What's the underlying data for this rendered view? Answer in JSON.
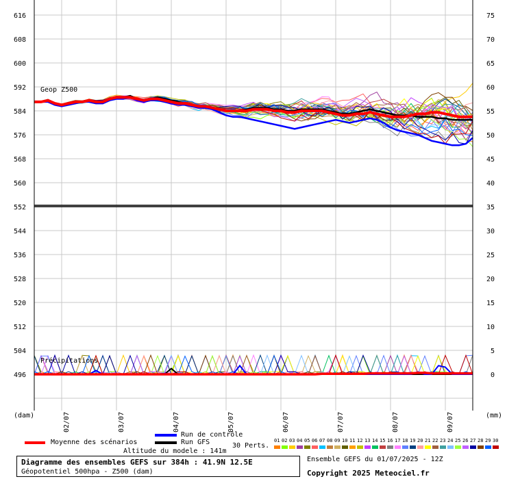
{
  "chart_data": {
    "type": "line",
    "upper_panel": {
      "label": "Geop Z500",
      "left_ticks": [
        "616",
        "608",
        "600",
        "592",
        "584",
        "576",
        "568",
        "560",
        "552"
      ],
      "right_ticks": [
        "75",
        "70",
        "65",
        "60",
        "55",
        "50",
        "45",
        "40",
        "35"
      ],
      "ylim": [
        552,
        620
      ]
    },
    "lower_panel": {
      "label": "Précipitations",
      "left_ticks": [
        "544",
        "536",
        "528",
        "520",
        "512",
        "504",
        "496"
      ],
      "right_ticks": [
        "30",
        "25",
        "20",
        "15",
        "10",
        "5",
        "0"
      ],
      "left_unit": "(dam)",
      "right_unit": "(mm)"
    },
    "x_ticks": [
      "02/07",
      "03/07",
      "04/07",
      "05/07",
      "06/07",
      "07/07",
      "08/07",
      "09/07"
    ],
    "mean_series": {
      "name": "Moyenne des scénarios",
      "color": "#ff0000",
      "z500": [
        587,
        587,
        587.5,
        586.5,
        586,
        586.5,
        587,
        587,
        587.5,
        587,
        587,
        588,
        588.5,
        588.5,
        588.5,
        588,
        587.5,
        588,
        588,
        587.5,
        587,
        586.5,
        586.5,
        586,
        585.5,
        585.5,
        585,
        584.5,
        584,
        584,
        584,
        584,
        584.5,
        584.5,
        584.5,
        584,
        584,
        583.5,
        583.5,
        584,
        584,
        584,
        584,
        583.5,
        583,
        582.5,
        582.5,
        583,
        583,
        583.5,
        583,
        582.5,
        582,
        582,
        582,
        582.5,
        583,
        583,
        583.5,
        583.5,
        583,
        582.5,
        582,
        582,
        582
      ],
      "precip": [
        0,
        0,
        0,
        0,
        0,
        0,
        0,
        0,
        0,
        0,
        0,
        0,
        0,
        0,
        0,
        0,
        0,
        0,
        0,
        0,
        0,
        0,
        0,
        0,
        0,
        0,
        0,
        0,
        0,
        0,
        0,
        0,
        0,
        0,
        0,
        0,
        0,
        0,
        0,
        0,
        0,
        0,
        0.1,
        0.1,
        0.1,
        0.1,
        0.1,
        0.1,
        0.1,
        0.2,
        0.2,
        0.2,
        0.2,
        0.2,
        0.2,
        0.2,
        0.3,
        0.3,
        0.2,
        0.2,
        0.2,
        0.2,
        0.2,
        0.2,
        0.2
      ]
    },
    "control_series": {
      "name": "Run de contrôle",
      "color": "#0000ff",
      "z500": [
        587,
        587,
        587,
        586,
        585.5,
        586,
        586.5,
        587,
        587,
        586.5,
        586.5,
        587.5,
        588,
        588,
        588.5,
        587.5,
        587,
        587.5,
        587.5,
        587,
        586.5,
        586,
        586,
        585.5,
        585,
        585,
        584.5,
        583.5,
        582.5,
        582,
        582,
        581.5,
        581,
        580.5,
        580,
        579.5,
        579,
        578.5,
        578,
        578.5,
        579,
        579.5,
        580,
        580.5,
        581,
        580.5,
        580,
        580.5,
        581,
        581.5,
        581,
        580,
        578.5,
        577.5,
        577,
        576.5,
        576,
        575,
        574,
        573.5,
        573,
        572.5,
        572.5,
        573,
        575
      ],
      "precip": [
        0,
        0,
        0,
        0,
        0,
        0,
        0,
        0,
        0,
        0.8,
        0,
        0,
        0,
        0,
        0,
        0,
        0,
        0,
        0,
        0.2,
        0,
        0,
        0,
        0,
        0,
        0,
        0,
        0,
        0,
        0,
        1.8,
        0,
        0,
        0,
        0,
        0,
        0,
        0,
        0,
        0,
        0,
        0,
        0,
        0,
        0,
        0,
        0,
        0,
        0,
        0,
        0,
        0,
        0,
        0,
        0,
        0,
        0.5,
        0,
        0,
        1.8,
        1.5,
        0,
        0,
        0,
        0
      ]
    },
    "gfs_series": {
      "name": "Run GFS",
      "color": "#000000",
      "z500": [
        587,
        587,
        587.5,
        586.5,
        586,
        586.5,
        587,
        587,
        587.5,
        587,
        587,
        588,
        588.5,
        588.5,
        589,
        588,
        587.5,
        588,
        588.5,
        588,
        587.5,
        587,
        586.5,
        586,
        585.5,
        585.5,
        585,
        584.5,
        584,
        584,
        584,
        584.5,
        585,
        585,
        585,
        584.5,
        584.5,
        584,
        584,
        584.5,
        584.5,
        584.5,
        584.5,
        584,
        583.5,
        583,
        583,
        583.5,
        584,
        584.5,
        584,
        583.5,
        583,
        582.5,
        582.5,
        582.5,
        582,
        582,
        582,
        581.5,
        581.5,
        581,
        581,
        581,
        581
      ],
      "precip": [
        0,
        0,
        0,
        0,
        0,
        0,
        0,
        0,
        0,
        0,
        0,
        0,
        0,
        0,
        0,
        0,
        0,
        0,
        0,
        0,
        1.2,
        0,
        0,
        0,
        0,
        0,
        0,
        0,
        0,
        0,
        0,
        0,
        0,
        0,
        0,
        0,
        0,
        0,
        0,
        0,
        0,
        0,
        0,
        0,
        0,
        0,
        0,
        0,
        0,
        0,
        0,
        0,
        0,
        0,
        0,
        0,
        0,
        0,
        0,
        0,
        0,
        0,
        0,
        0,
        0
      ]
    },
    "perturbations_label": "30 Perts.",
    "perturbation_numbers": [
      "01",
      "02",
      "03",
      "04",
      "05",
      "06",
      "07",
      "08",
      "09",
      "10",
      "11",
      "12",
      "13",
      "14",
      "15",
      "16",
      "17",
      "18",
      "19",
      "20",
      "21",
      "22",
      "23",
      "24",
      "25",
      "26",
      "27",
      "28",
      "29",
      "30"
    ],
    "perturbation_colors": [
      "#ff8000",
      "#80ff00",
      "#ffcc00",
      "#a040a0",
      "#808000",
      "#ff6060",
      "#00c0ff",
      "#c08040",
      "#d0b060",
      "#606000",
      "#ffa000",
      "#c0c000",
      "#c040ff",
      "#00c060",
      "#c04040",
      "#808080",
      "#ff80ff",
      "#6080ff",
      "#004080",
      "#ffa0a0",
      "#ffff00",
      "#a06040",
      "#40a0a0",
      "#80c0ff",
      "#a0ff40",
      "#c060ff",
      "#0000a0",
      "#804000",
      "#0060ff",
      "#c00000"
    ],
    "model_altitude": "Altitude du modele : 141m"
  },
  "footer": {
    "title": "Diagramme des ensembles GEFS sur 384h : 41.9N 12.5E",
    "subtitle": "Géopotentiel 500hpa - Z500 (dam)",
    "ensemble_info": "Ensemble GEFS du 01/07/2025 - 12Z",
    "copyright": "Copyright 2025 Meteociel.fr"
  }
}
